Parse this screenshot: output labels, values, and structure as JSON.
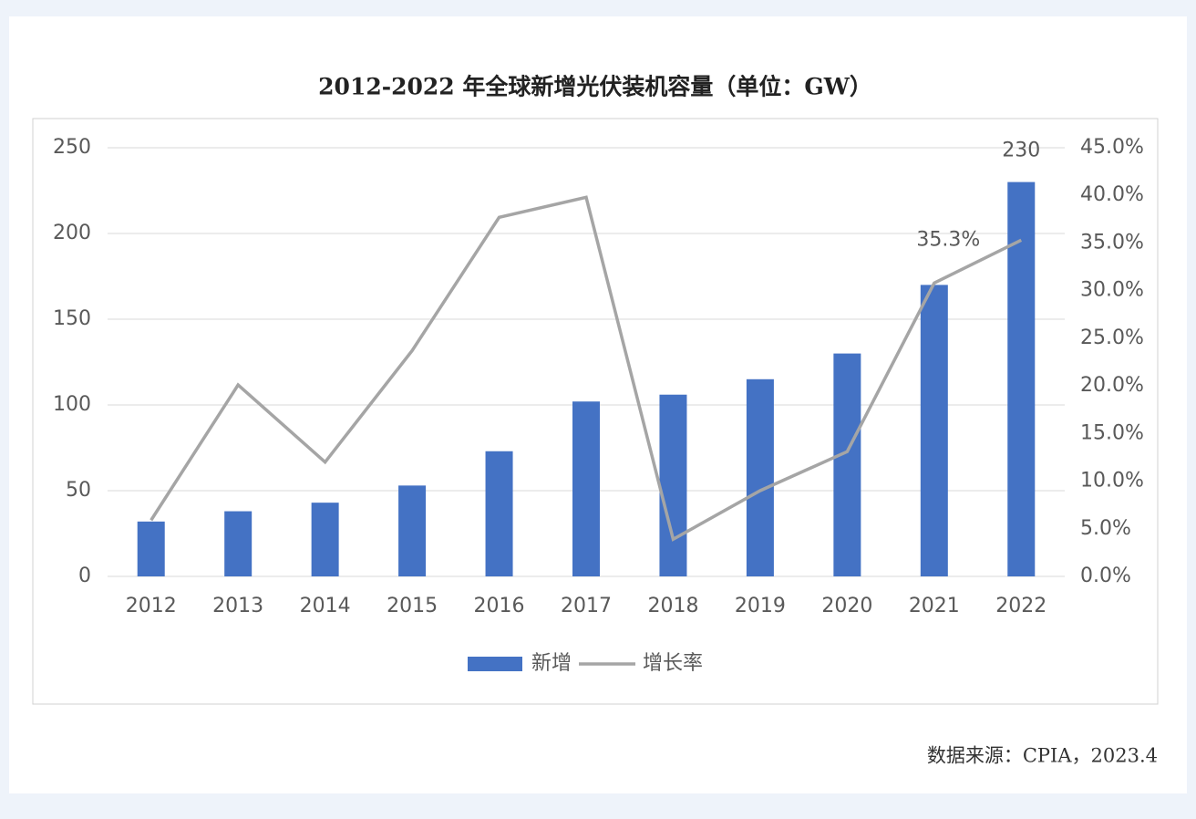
{
  "chart_data": {
    "type": "bar",
    "title": "2012-2022 年全球新增光伏装机容量（单位：GW）",
    "source": "数据来源：CPIA，2023.4",
    "categories": [
      "2012",
      "2013",
      "2014",
      "2015",
      "2016",
      "2017",
      "2018",
      "2019",
      "2020",
      "2021",
      "2022"
    ],
    "series": [
      {
        "name": "新增",
        "type": "bar",
        "color": "#4472c4",
        "values": [
          32,
          38,
          43,
          53,
          73,
          102,
          106,
          115,
          130,
          170,
          230
        ],
        "value_labels": [
          null,
          null,
          null,
          null,
          null,
          null,
          null,
          null,
          null,
          null,
          "230"
        ]
      },
      {
        "name": "增长率",
        "type": "line",
        "axis": "y2",
        "color": "#a5a5a5",
        "values": [
          5.9,
          20.1,
          12.0,
          23.7,
          37.7,
          39.8,
          3.9,
          9.0,
          13.1,
          30.8,
          35.3
        ],
        "value_labels": [
          null,
          null,
          null,
          null,
          null,
          null,
          null,
          null,
          null,
          null,
          "35.3%"
        ]
      }
    ],
    "ylim": [
      0,
      250
    ],
    "yticks": [
      0,
      50,
      100,
      150,
      200,
      250
    ],
    "y2lim": [
      0,
      45
    ],
    "y2ticks": [
      {
        "value": 0,
        "label": "0.0%"
      },
      {
        "value": 5,
        "label": "5.0%"
      },
      {
        "value": 10,
        "label": "10.0%"
      },
      {
        "value": 15,
        "label": "15.0%"
      },
      {
        "value": 20,
        "label": "20.0%"
      },
      {
        "value": 25,
        "label": "25.0%"
      },
      {
        "value": 30,
        "label": "30.0%"
      },
      {
        "value": 35,
        "label": "35.0%"
      },
      {
        "value": 40,
        "label": "40.0%"
      },
      {
        "value": 45,
        "label": "45.0%"
      }
    ],
    "grid": true,
    "legend": "bottom"
  }
}
